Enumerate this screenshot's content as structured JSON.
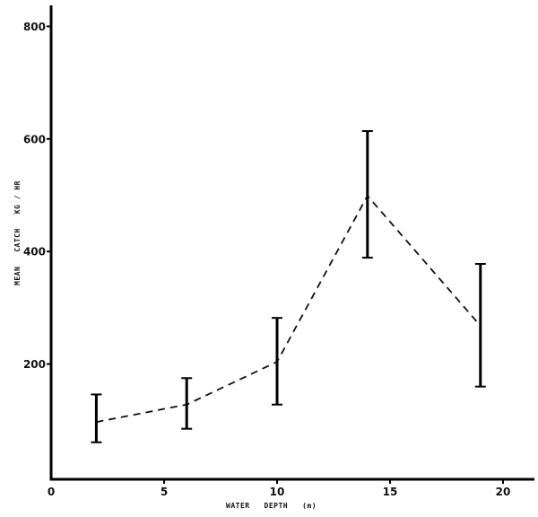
{
  "chart_data": {
    "type": "line",
    "title": "",
    "xlabel": "WATER   DEPTH   (m)",
    "ylabel": "MEAN   CATCH   KG / HR",
    "xlim": [
      0,
      21
    ],
    "ylim": [
      0,
      850
    ],
    "x_ticks": [
      0,
      5,
      10,
      15,
      20
    ],
    "y_ticks": [
      200,
      400,
      600,
      800
    ],
    "grid": false,
    "legend": null,
    "line_style": "dashed",
    "series": [
      {
        "name": "Mean catch",
        "x": [
          2,
          6,
          10,
          14,
          19
        ],
        "values": [
          97,
          128,
          204,
          499,
          268
        ],
        "error_upper": [
          146,
          175,
          282,
          614,
          378
        ],
        "error_lower": [
          61,
          85,
          128,
          389,
          160
        ]
      }
    ]
  },
  "labels": {
    "x_ticks": [
      "0",
      "5",
      "10",
      "15",
      "20"
    ],
    "y_ticks": [
      "200",
      "400",
      "600",
      "800"
    ],
    "xlabel": "WATER   DEPTH   (m)",
    "ylabel": "MEAN   CATCH   KG / HR"
  }
}
